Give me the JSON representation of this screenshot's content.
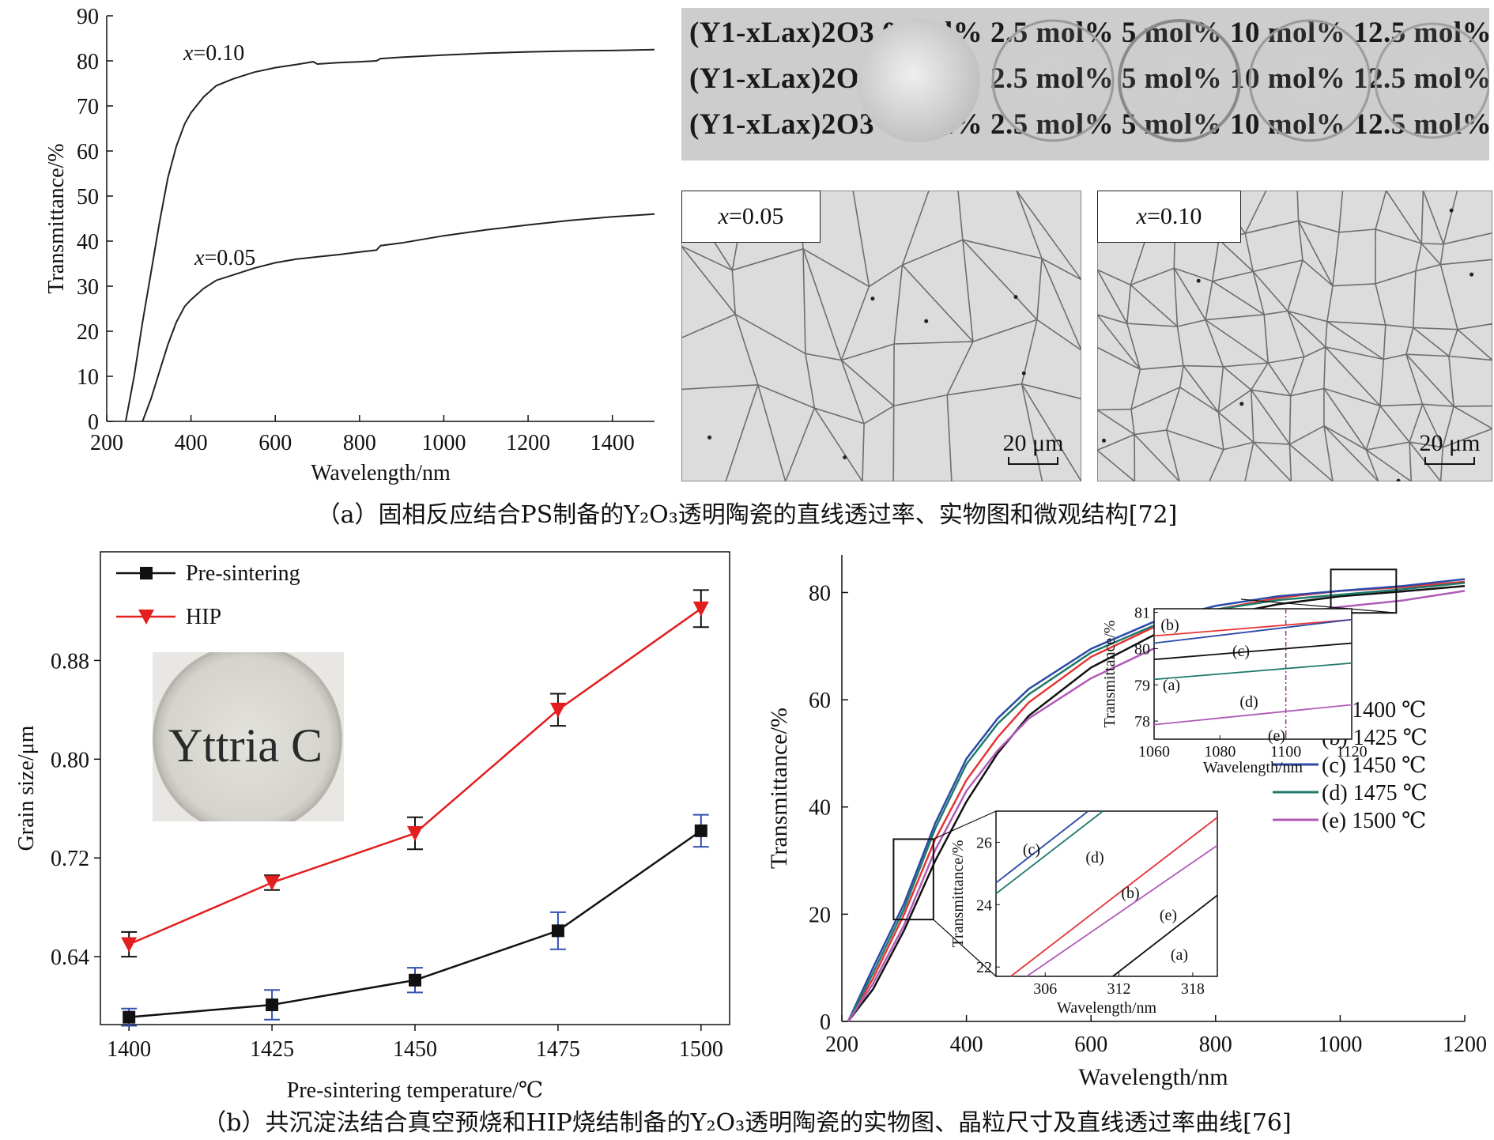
{
  "captions": {
    "a": "（a）固相反应结合PS制备的Y₂O₃透明陶瓷的直线透过率、实物图和微观结构[72]",
    "b": "（b）共沉淀法结合真空预烧和HIP烧结制备的Y₂O₃透明陶瓷的实物图、晶粒尺寸及直线透过率曲线[76]"
  },
  "photo_a": {
    "row_label": "(Y1-xLax)2O3 0 mol% 2.5 mol% 5 mol% 10 mol% 12.5 mol%",
    "rows": 3
  },
  "micro_left": {
    "label_var": "x",
    "label_val": "=0.05",
    "scale": "20 μm"
  },
  "micro_right": {
    "label_var": "x",
    "label_val": "=0.10",
    "scale": "20 μm"
  },
  "photo_b": {
    "text": "Yttria C"
  },
  "chart_data": [
    {
      "id": "a",
      "type": "line",
      "xlabel": "Wavelength/nm",
      "ylabel": "Transmittance/%",
      "xlim": [
        200,
        1500
      ],
      "ylim": [
        0,
        90
      ],
      "xticks": [
        200,
        400,
        600,
        800,
        1000,
        1200,
        1400
      ],
      "yticks": [
        0,
        10,
        20,
        30,
        40,
        50,
        60,
        70,
        80,
        90
      ],
      "series": [
        {
          "name": "x=0.10",
          "label_var": "x",
          "label_val": "=0.10",
          "color": "#222222",
          "points": [
            [
              245,
              0
            ],
            [
              265,
              10
            ],
            [
              285,
              22
            ],
            [
              305,
              33
            ],
            [
              325,
              44
            ],
            [
              345,
              54
            ],
            [
              365,
              61
            ],
            [
              385,
              66
            ],
            [
              400,
              68.5
            ],
            [
              430,
              72
            ],
            [
              460,
              74.5
            ],
            [
              500,
              76
            ],
            [
              550,
              77.5
            ],
            [
              600,
              78.5
            ],
            [
              650,
              79.2
            ],
            [
              690,
              79.8
            ],
            [
              700,
              79.3
            ],
            [
              750,
              79.6
            ],
            [
              800,
              79.8
            ],
            [
              840,
              80
            ],
            [
              850,
              80.5
            ],
            [
              900,
              80.8
            ],
            [
              1000,
              81.3
            ],
            [
              1100,
              81.7
            ],
            [
              1200,
              82
            ],
            [
              1300,
              82.2
            ],
            [
              1400,
              82.3
            ],
            [
              1500,
              82.5
            ]
          ]
        },
        {
          "name": "x=0.05",
          "label_var": "x",
          "label_val": "=0.05",
          "color": "#222222",
          "points": [
            [
              285,
              0
            ],
            [
              305,
              5
            ],
            [
              325,
              11
            ],
            [
              345,
              17
            ],
            [
              365,
              22
            ],
            [
              385,
              25.5
            ],
            [
              400,
              27
            ],
            [
              430,
              29.5
            ],
            [
              460,
              31.3
            ],
            [
              500,
              32.5
            ],
            [
              550,
              34
            ],
            [
              600,
              35.2
            ],
            [
              650,
              36
            ],
            [
              700,
              36.5
            ],
            [
              750,
              37
            ],
            [
              800,
              37.6
            ],
            [
              840,
              38
            ],
            [
              850,
              39
            ],
            [
              900,
              39.6
            ],
            [
              1000,
              41.2
            ],
            [
              1100,
              42.5
            ],
            [
              1200,
              43.6
            ],
            [
              1300,
              44.6
            ],
            [
              1400,
              45.4
            ],
            [
              1500,
              46
            ]
          ]
        }
      ]
    },
    {
      "id": "b_left",
      "type": "line",
      "xlabel": "Pre-sintering temperature/℃",
      "ylabel": "Grain size/μm",
      "xlim": [
        1395,
        1505
      ],
      "ylim": [
        0.585,
        0.968
      ],
      "xticks": [
        1400,
        1425,
        1450,
        1475,
        1500
      ],
      "yticks": [
        0.64,
        0.72,
        0.8,
        0.88
      ],
      "series": [
        {
          "name": "Pre-sintering",
          "marker": "square",
          "color": "#111111",
          "errcolor": "#3350b0",
          "x": [
            1400,
            1425,
            1450,
            1475,
            1500
          ],
          "y": [
            0.591,
            0.601,
            0.621,
            0.661,
            0.742
          ],
          "err": [
            0.007,
            0.012,
            0.01,
            0.015,
            0.013
          ]
        },
        {
          "name": "HIP",
          "marker": "triangle-down",
          "color": "#e31e1e",
          "errcolor": "#111111",
          "x": [
            1400,
            1425,
            1450,
            1475,
            1500
          ],
          "y": [
            0.65,
            0.7,
            0.74,
            0.84,
            0.922
          ],
          "err": [
            0.01,
            0.006,
            0.013,
            0.013,
            0.015
          ]
        }
      ]
    },
    {
      "id": "b_right",
      "type": "line",
      "xlabel": "Wavelength/nm",
      "ylabel": "Transmittance/%",
      "xlim": [
        200,
        1200
      ],
      "ylim": [
        0,
        87
      ],
      "xticks": [
        200,
        400,
        600,
        800,
        1000,
        1200
      ],
      "yticks": [
        0,
        20,
        40,
        60,
        80
      ],
      "series": [
        {
          "name": "(a) 1400 ℃",
          "color": "#111111",
          "points": [
            [
              210,
              0
            ],
            [
              250,
              6
            ],
            [
              300,
              17
            ],
            [
              350,
              30
            ],
            [
              400,
              41
            ],
            [
              450,
              50
            ],
            [
              500,
              57
            ],
            [
              600,
              66
            ],
            [
              700,
              72
            ],
            [
              800,
              75.5
            ],
            [
              900,
              77.8
            ],
            [
              1000,
              79.3
            ],
            [
              1100,
              80.2
            ],
            [
              1200,
              81.2
            ]
          ]
        },
        {
          "name": "(b) 1425 ℃",
          "color": "#e53535",
          "points": [
            [
              210,
              0
            ],
            [
              250,
              8
            ],
            [
              300,
              20
            ],
            [
              350,
              34
            ],
            [
              400,
              45
            ],
            [
              450,
              53
            ],
            [
              500,
              59.5
            ],
            [
              600,
              68
            ],
            [
              700,
              73.5
            ],
            [
              800,
              76.8
            ],
            [
              900,
              79
            ],
            [
              1000,
              80.3
            ],
            [
              1100,
              81
            ],
            [
              1200,
              82
            ]
          ]
        },
        {
          "name": "(c) 1450 ℃",
          "color": "#2b4aa8",
          "points": [
            [
              210,
              0
            ],
            [
              250,
              10
            ],
            [
              300,
              22
            ],
            [
              350,
              37
            ],
            [
              400,
              49
            ],
            [
              450,
              56.5
            ],
            [
              500,
              62
            ],
            [
              600,
              69.5
            ],
            [
              700,
              74.5
            ],
            [
              800,
              77.5
            ],
            [
              900,
              79.3
            ],
            [
              1000,
              80.3
            ],
            [
              1100,
              81.2
            ],
            [
              1200,
              82.5
            ]
          ]
        },
        {
          "name": "(d) 1475 ℃",
          "color": "#1f7a6a",
          "points": [
            [
              210,
              0
            ],
            [
              250,
              9
            ],
            [
              300,
              21
            ],
            [
              350,
              36
            ],
            [
              400,
              48
            ],
            [
              450,
              55.5
            ],
            [
              500,
              61
            ],
            [
              600,
              68.8
            ],
            [
              700,
              73.8
            ],
            [
              800,
              76.8
            ],
            [
              900,
              78.6
            ],
            [
              1000,
              79.6
            ],
            [
              1100,
              80.6
            ],
            [
              1200,
              81.8
            ]
          ]
        },
        {
          "name": "(e) 1500 ℃",
          "color": "#b05ab8",
          "points": [
            [
              210,
              0
            ],
            [
              250,
              7
            ],
            [
              300,
              18
            ],
            [
              350,
              32
            ],
            [
              400,
              43
            ],
            [
              450,
              50.5
            ],
            [
              500,
              56.5
            ],
            [
              600,
              64
            ],
            [
              700,
              69.5
            ],
            [
              800,
              73
            ],
            [
              900,
              75.6
            ],
            [
              1000,
              77.3
            ],
            [
              1100,
              78.5
            ],
            [
              1200,
              80.3
            ]
          ]
        }
      ],
      "inset_top": {
        "xlabel": "Wavelength/nm",
        "ylabel": "Transmittance/%",
        "xlim": [
          1060,
          1120
        ],
        "ylim": [
          77.5,
          81.1
        ],
        "xticks": [
          1060,
          1080,
          1100,
          1120
        ],
        "yticks": [
          78,
          79,
          80,
          81
        ],
        "vline": 1100,
        "lines": [
          {
            "label": "(b)",
            "color": "#e53535",
            "y0": 80.35,
            "y1": 80.8
          },
          {
            "label": "(c)",
            "color": "#2b4aa8",
            "y0": 80.15,
            "y1": 80.8
          },
          {
            "label": "(a)",
            "color": "#111111",
            "y0": 79.7,
            "y1": 80.15
          },
          {
            "label": "(d)",
            "color": "#1f7a6a",
            "y0": 79.15,
            "y1": 79.6
          },
          {
            "label": "(e)",
            "color": "#b05ab8",
            "y0": 77.9,
            "y1": 78.45
          }
        ]
      },
      "inset_bottom": {
        "xlabel": "Wavelength/nm",
        "ylabel": "Transmittance/%",
        "xlim": [
          302,
          320
        ],
        "ylim": [
          21.7,
          27
        ],
        "xticks": [
          306,
          312,
          318
        ],
        "yticks": [
          22,
          24,
          26
        ],
        "lines": [
          {
            "label": "(c)",
            "color": "#2b4aa8",
            "p0": [
              302,
              24.7
            ],
            "p1": [
              309.5,
              27
            ]
          },
          {
            "label": "(d)",
            "color": "#1f7a6a",
            "p0": [
              302,
              24.35
            ],
            "p1": [
              310.7,
              27
            ]
          },
          {
            "label": "(b)",
            "color": "#e53535",
            "p0": [
              303.2,
              21.7
            ],
            "p1": [
              320,
              26.8
            ]
          },
          {
            "label": "(e)",
            "color": "#b05ab8",
            "p0": [
              304.5,
              21.7
            ],
            "p1": [
              320,
              25.9
            ]
          },
          {
            "label": "(a)",
            "color": "#111111",
            "p0": [
              311.5,
              21.7
            ],
            "p1": [
              320,
              24.3
            ]
          }
        ]
      }
    }
  ]
}
